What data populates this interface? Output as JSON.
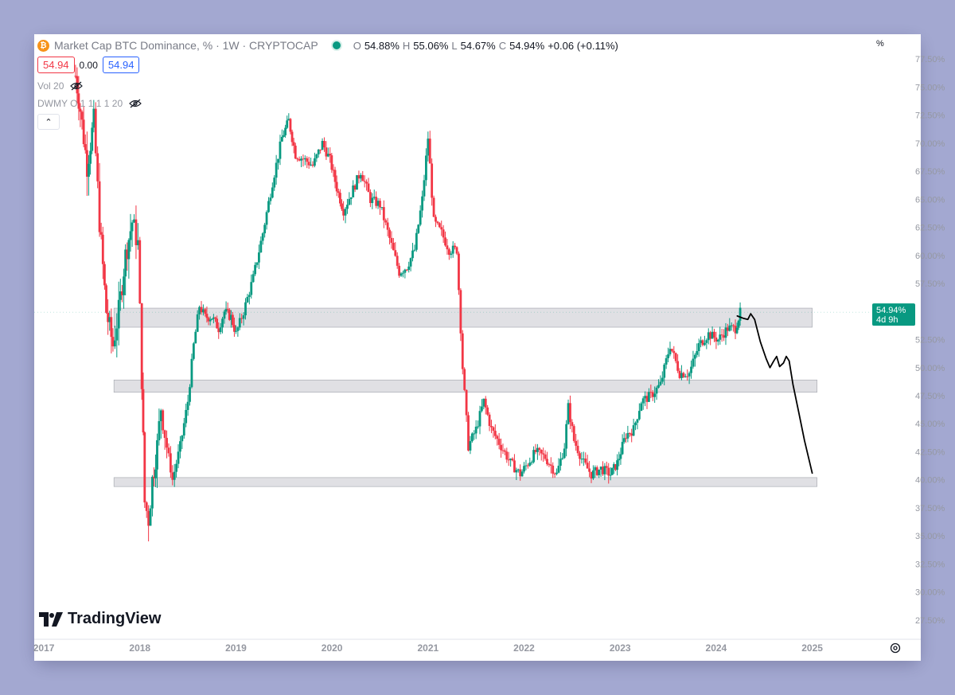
{
  "header": {
    "symbol_title": "Market Cap BTC Dominance, % · 1W · CRYPTOCAP",
    "ohlc": {
      "o_label": "O",
      "o_value": "54.88%",
      "h_label": "H",
      "h_value": "55.06%",
      "l_label": "L",
      "l_value": "54.67%",
      "c_label": "C",
      "c_value": "54.94%",
      "change": "+0.06 (+0.11%)"
    },
    "sell_price": "54.94",
    "spread": "0.00",
    "buy_price": "54.94",
    "indicators": [
      "Vol 20",
      "DWMY O 1 1 1 1 20"
    ],
    "collapse_glyph": "⌃",
    "axis_unit": "%"
  },
  "branding": {
    "logo_text": "TradingView"
  },
  "last_price": {
    "value": "54.94%",
    "countdown": "4d 9h"
  },
  "colors": {
    "up": "#089981",
    "down": "#f23645",
    "zone": "#e0e0e4",
    "drawing": "#000000"
  },
  "icons": [
    "bitcoin-logo-icon",
    "eye-off-icon",
    "chevron-up-icon",
    "settings-icon",
    "tradingview-logo-icon"
  ],
  "chart_data": {
    "type": "candlestick",
    "title": "Market Cap BTC Dominance, % · 1W · CRYPTOCAP",
    "y_ticks": [
      "77.50%",
      "75.00%",
      "72.50%",
      "70.00%",
      "67.50%",
      "65.00%",
      "62.50%",
      "60.00%",
      "57.50%",
      "52.50%",
      "50.00%",
      "47.50%",
      "45.00%",
      "42.50%",
      "40.00%",
      "37.50%",
      "35.00%",
      "32.50%",
      "30.00%",
      "27.50%"
    ],
    "ylim": [
      26.5,
      79
    ],
    "x_ticks": [
      "2017",
      "2018",
      "2019",
      "2020",
      "2021",
      "2022",
      "2023",
      "2024",
      "2025"
    ],
    "xlim": [
      2016.9,
      2025.6
    ],
    "anchors": [
      [
        2017.33,
        76.0
      ],
      [
        2017.38,
        73.0
      ],
      [
        2017.45,
        68.0
      ],
      [
        2017.52,
        72.0
      ],
      [
        2017.58,
        63.0
      ],
      [
        2017.65,
        55.0
      ],
      [
        2017.72,
        52.0
      ],
      [
        2017.78,
        55.0
      ],
      [
        2017.85,
        60.0
      ],
      [
        2017.92,
        63.0
      ],
      [
        2017.98,
        61.0
      ],
      [
        2018.02,
        49.0
      ],
      [
        2018.05,
        38.0
      ],
      [
        2018.09,
        36.5
      ],
      [
        2018.13,
        40.0
      ],
      [
        2018.18,
        43.0
      ],
      [
        2018.22,
        46.5
      ],
      [
        2018.28,
        43.0
      ],
      [
        2018.34,
        40.0
      ],
      [
        2018.42,
        43.0
      ],
      [
        2018.5,
        47.0
      ],
      [
        2018.56,
        52.0
      ],
      [
        2018.62,
        55.5
      ],
      [
        2018.68,
        54.5
      ],
      [
        2018.75,
        54.5
      ],
      [
        2018.82,
        53.5
      ],
      [
        2018.88,
        55.0
      ],
      [
        2018.95,
        54.5
      ],
      [
        2019.0,
        53.0
      ],
      [
        2019.08,
        55.0
      ],
      [
        2019.18,
        58.0
      ],
      [
        2019.28,
        62.0
      ],
      [
        2019.38,
        66.5
      ],
      [
        2019.48,
        70.5
      ],
      [
        2019.55,
        72.0
      ],
      [
        2019.62,
        69.0
      ],
      [
        2019.72,
        68.5
      ],
      [
        2019.8,
        68.0
      ],
      [
        2019.9,
        70.0
      ],
      [
        2019.98,
        68.5
      ],
      [
        2020.05,
        66.0
      ],
      [
        2020.12,
        64.0
      ],
      [
        2020.2,
        65.5
      ],
      [
        2020.3,
        67.5
      ],
      [
        2020.4,
        65.0
      ],
      [
        2020.5,
        64.5
      ],
      [
        2020.6,
        61.5
      ],
      [
        2020.7,
        58.5
      ],
      [
        2020.78,
        59.0
      ],
      [
        2020.86,
        60.5
      ],
      [
        2020.94,
        65.0
      ],
      [
        2021.0,
        70.5
      ],
      [
        2021.06,
        63.0
      ],
      [
        2021.14,
        62.0
      ],
      [
        2021.22,
        60.5
      ],
      [
        2021.3,
        60.5
      ],
      [
        2021.36,
        50.0
      ],
      [
        2021.42,
        43.0
      ],
      [
        2021.5,
        44.5
      ],
      [
        2021.58,
        47.0
      ],
      [
        2021.66,
        44.5
      ],
      [
        2021.76,
        43.0
      ],
      [
        2021.86,
        41.5
      ],
      [
        2021.96,
        40.5
      ],
      [
        2022.04,
        41.5
      ],
      [
        2022.12,
        42.5
      ],
      [
        2022.22,
        42.0
      ],
      [
        2022.34,
        40.5
      ],
      [
        2022.42,
        43.0
      ],
      [
        2022.46,
        46.5
      ],
      [
        2022.52,
        43.5
      ],
      [
        2022.62,
        41.5
      ],
      [
        2022.7,
        40.5
      ],
      [
        2022.8,
        41.0
      ],
      [
        2022.9,
        40.5
      ],
      [
        2022.97,
        41.5
      ],
      [
        2023.06,
        44.0
      ],
      [
        2023.14,
        44.5
      ],
      [
        2023.22,
        47.0
      ],
      [
        2023.32,
        47.5
      ],
      [
        2023.42,
        48.5
      ],
      [
        2023.52,
        52.0
      ],
      [
        2023.62,
        49.5
      ],
      [
        2023.72,
        49.5
      ],
      [
        2023.82,
        52.0
      ],
      [
        2023.92,
        53.0
      ],
      [
        2024.02,
        52.5
      ],
      [
        2024.12,
        53.5
      ],
      [
        2024.2,
        53.5
      ],
      [
        2024.25,
        54.9
      ]
    ],
    "last_value": 54.94,
    "zones": [
      {
        "name": "resistance-zone",
        "from_x": 2017.73,
        "to_x": 2025.0,
        "y_low": 53.6,
        "y_high": 55.3
      },
      {
        "name": "mid-zone",
        "from_x": 2017.73,
        "to_x": 2025.05,
        "y_low": 47.8,
        "y_high": 48.9
      },
      {
        "name": "support-zone",
        "from_x": 2017.73,
        "to_x": 2025.05,
        "y_low": 39.4,
        "y_high": 40.2
      }
    ],
    "drawing_path": [
      [
        2024.22,
        54.6
      ],
      [
        2024.28,
        54.4
      ],
      [
        2024.33,
        54.3
      ],
      [
        2024.36,
        54.8
      ],
      [
        2024.4,
        54.3
      ],
      [
        2024.46,
        52.3
      ],
      [
        2024.52,
        50.8
      ],
      [
        2024.56,
        50.0
      ],
      [
        2024.6,
        50.6
      ],
      [
        2024.63,
        51.0
      ],
      [
        2024.66,
        50.1
      ],
      [
        2024.7,
        50.4
      ],
      [
        2024.73,
        51.0
      ],
      [
        2024.76,
        50.6
      ],
      [
        2024.8,
        48.5
      ],
      [
        2024.86,
        46.0
      ],
      [
        2024.92,
        43.5
      ],
      [
        2025.0,
        40.6
      ]
    ],
    "grid": false,
    "legend": "top-left"
  }
}
